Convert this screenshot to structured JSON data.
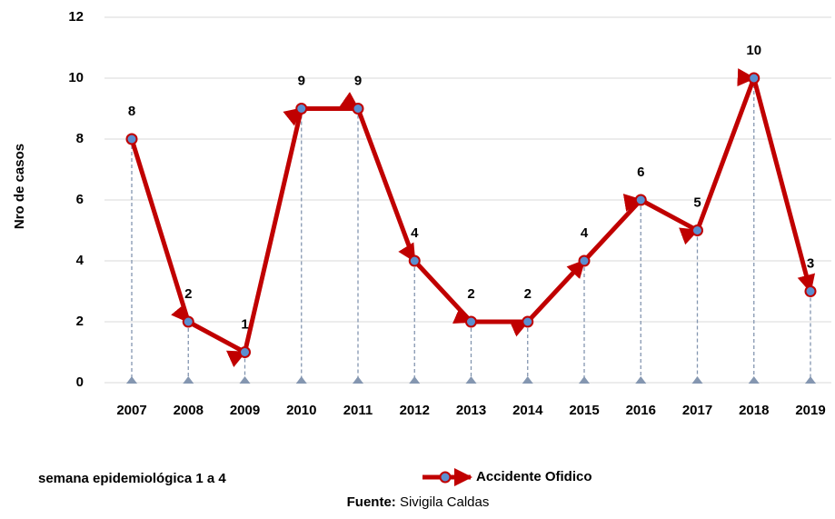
{
  "chart_data": {
    "type": "line",
    "y_label": "Nro de casos",
    "x_label": "semana epidemiológica 1 a 4",
    "source": {
      "label": "Fuente:",
      "text": "Sivigila Caldas"
    },
    "categories": [
      "2007",
      "2008",
      "2009",
      "2010",
      "2011",
      "2012",
      "2013",
      "2014",
      "2015",
      "2016",
      "2017",
      "2018",
      "2019"
    ],
    "series": [
      {
        "name": "Accidente Ofidico",
        "color": "#c00000",
        "marker_color": "#5b8fd0",
        "values": [
          8,
          2,
          1,
          9,
          9,
          4,
          2,
          2,
          4,
          6,
          5,
          10,
          3
        ]
      }
    ],
    "ylim": [
      0,
      12
    ],
    "yticks": [
      0,
      2,
      4,
      6,
      8,
      10,
      12
    ],
    "grid": true
  }
}
